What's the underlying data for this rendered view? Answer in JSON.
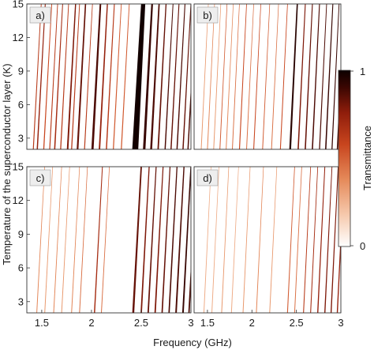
{
  "figure": {
    "xlabel": "Frequency (GHz)",
    "ylabel": "Temperature of the superconductor layer (K)",
    "colorbar_label": "Transmittance",
    "colorbar_ticks": [
      "1",
      "0"
    ]
  },
  "colorscale": {
    "stops": [
      "#ffffff",
      "#f6c9ad",
      "#e58a5a",
      "#c8451e",
      "#8f1d0b",
      "#3d0702",
      "#0c0000"
    ],
    "range": [
      0,
      1
    ]
  },
  "chart_data": [
    {
      "type": "heatmap",
      "panel_label": "a)",
      "xlim": [
        1.35,
        3.0
      ],
      "ylim": [
        2,
        15
      ],
      "x_ticks": [],
      "y_ticks": [
        "3",
        "6",
        "9",
        "12",
        "15"
      ],
      "bands": [
        {
          "f": 1.415,
          "w": 0.01,
          "v": 0.55
        },
        {
          "f": 1.455,
          "w": 0.012,
          "v": 0.65
        },
        {
          "f": 1.52,
          "w": 0.01,
          "v": 0.5
        },
        {
          "f": 1.58,
          "w": 0.01,
          "v": 0.55
        },
        {
          "f": 1.63,
          "w": 0.012,
          "v": 0.6
        },
        {
          "f": 1.69,
          "w": 0.01,
          "v": 0.55
        },
        {
          "f": 1.76,
          "w": 0.016,
          "v": 0.7
        },
        {
          "f": 1.8,
          "w": 0.01,
          "v": 0.55
        },
        {
          "f": 1.86,
          "w": 0.018,
          "v": 0.75
        },
        {
          "f": 1.93,
          "w": 0.01,
          "v": 0.55
        },
        {
          "f": 2.01,
          "w": 0.022,
          "v": 0.8
        },
        {
          "f": 2.08,
          "w": 0.015,
          "v": 0.65
        },
        {
          "f": 2.15,
          "w": 0.012,
          "v": 0.55
        },
        {
          "f": 2.22,
          "w": 0.01,
          "v": 0.45
        },
        {
          "f": 2.3,
          "w": 0.01,
          "v": 0.45
        },
        {
          "f": 2.44,
          "w": 0.06,
          "v": 0.98
        },
        {
          "f": 2.53,
          "w": 0.025,
          "v": 0.85
        },
        {
          "f": 2.6,
          "w": 0.02,
          "v": 0.8
        },
        {
          "f": 2.67,
          "w": 0.015,
          "v": 0.75
        },
        {
          "f": 2.74,
          "w": 0.012,
          "v": 0.8
        },
        {
          "f": 2.8,
          "w": 0.012,
          "v": 0.75
        },
        {
          "f": 2.86,
          "w": 0.012,
          "v": 0.8
        },
        {
          "f": 2.92,
          "w": 0.012,
          "v": 0.75
        },
        {
          "f": 2.97,
          "w": 0.012,
          "v": 0.8
        }
      ]
    },
    {
      "type": "heatmap",
      "panel_label": "b)",
      "xlim": [
        1.35,
        3.0
      ],
      "ylim": [
        2,
        15
      ],
      "x_ticks": [],
      "y_ticks": [],
      "bands": [
        {
          "f": 1.43,
          "w": 0.006,
          "v": 0.3
        },
        {
          "f": 1.5,
          "w": 0.006,
          "v": 0.35
        },
        {
          "f": 1.57,
          "w": 0.006,
          "v": 0.3
        },
        {
          "f": 1.64,
          "w": 0.008,
          "v": 0.45
        },
        {
          "f": 1.71,
          "w": 0.006,
          "v": 0.35
        },
        {
          "f": 1.78,
          "w": 0.008,
          "v": 0.4
        },
        {
          "f": 1.86,
          "w": 0.01,
          "v": 0.5
        },
        {
          "f": 1.94,
          "w": 0.008,
          "v": 0.4
        },
        {
          "f": 2.02,
          "w": 0.01,
          "v": 0.5
        },
        {
          "f": 2.12,
          "w": 0.008,
          "v": 0.45
        },
        {
          "f": 2.22,
          "w": 0.008,
          "v": 0.4
        },
        {
          "f": 2.32,
          "w": 0.01,
          "v": 0.5
        },
        {
          "f": 2.43,
          "w": 0.02,
          "v": 0.9
        },
        {
          "f": 2.52,
          "w": 0.014,
          "v": 0.7
        },
        {
          "f": 2.6,
          "w": 0.014,
          "v": 0.75
        },
        {
          "f": 2.68,
          "w": 0.014,
          "v": 0.8
        },
        {
          "f": 2.76,
          "w": 0.012,
          "v": 0.8
        },
        {
          "f": 2.83,
          "w": 0.014,
          "v": 0.85
        },
        {
          "f": 2.9,
          "w": 0.012,
          "v": 0.85
        },
        {
          "f": 2.96,
          "w": 0.012,
          "v": 0.8
        }
      ]
    },
    {
      "type": "heatmap",
      "panel_label": "c)",
      "xlim": [
        1.35,
        3.0
      ],
      "ylim": [
        2,
        15
      ],
      "x_ticks": [
        "1.5",
        "2",
        "2.5",
        "3"
      ],
      "y_ticks": [
        "3",
        "6",
        "9",
        "12",
        "15"
      ],
      "bands": [
        {
          "f": 1.45,
          "w": 0.006,
          "v": 0.35
        },
        {
          "f": 1.53,
          "w": 0.006,
          "v": 0.3
        },
        {
          "f": 1.62,
          "w": 0.006,
          "v": 0.35
        },
        {
          "f": 1.7,
          "w": 0.006,
          "v": 0.3
        },
        {
          "f": 1.8,
          "w": 0.006,
          "v": 0.35
        },
        {
          "f": 1.88,
          "w": 0.008,
          "v": 0.4
        },
        {
          "f": 2.03,
          "w": 0.012,
          "v": 0.6
        },
        {
          "f": 2.1,
          "w": 0.008,
          "v": 0.4
        },
        {
          "f": 2.42,
          "w": 0.02,
          "v": 0.75
        },
        {
          "f": 2.5,
          "w": 0.014,
          "v": 0.7
        },
        {
          "f": 2.57,
          "w": 0.014,
          "v": 0.75
        },
        {
          "f": 2.64,
          "w": 0.014,
          "v": 0.7
        },
        {
          "f": 2.71,
          "w": 0.014,
          "v": 0.75
        },
        {
          "f": 2.78,
          "w": 0.014,
          "v": 0.8
        },
        {
          "f": 2.85,
          "w": 0.016,
          "v": 0.8
        },
        {
          "f": 2.92,
          "w": 0.016,
          "v": 0.85
        },
        {
          "f": 2.98,
          "w": 0.014,
          "v": 0.8
        }
      ]
    },
    {
      "type": "heatmap",
      "panel_label": "d)",
      "xlim": [
        1.35,
        3.0
      ],
      "ylim": [
        2,
        15
      ],
      "x_ticks": [
        "1.5",
        "2",
        "2.5",
        "3"
      ],
      "y_ticks": [],
      "bands": [
        {
          "f": 1.46,
          "w": 0.005,
          "v": 0.25
        },
        {
          "f": 1.55,
          "w": 0.005,
          "v": 0.25
        },
        {
          "f": 1.66,
          "w": 0.005,
          "v": 0.3
        },
        {
          "f": 1.77,
          "w": 0.005,
          "v": 0.25
        },
        {
          "f": 1.9,
          "w": 0.006,
          "v": 0.3
        },
        {
          "f": 2.05,
          "w": 0.006,
          "v": 0.35
        },
        {
          "f": 2.2,
          "w": 0.006,
          "v": 0.3
        },
        {
          "f": 2.4,
          "w": 0.01,
          "v": 0.45
        },
        {
          "f": 2.48,
          "w": 0.008,
          "v": 0.4
        },
        {
          "f": 2.58,
          "w": 0.01,
          "v": 0.55
        },
        {
          "f": 2.66,
          "w": 0.01,
          "v": 0.6
        },
        {
          "f": 2.74,
          "w": 0.012,
          "v": 0.65
        },
        {
          "f": 2.82,
          "w": 0.012,
          "v": 0.7
        },
        {
          "f": 2.89,
          "w": 0.012,
          "v": 0.7
        },
        {
          "f": 2.96,
          "w": 0.012,
          "v": 0.65
        }
      ]
    }
  ]
}
